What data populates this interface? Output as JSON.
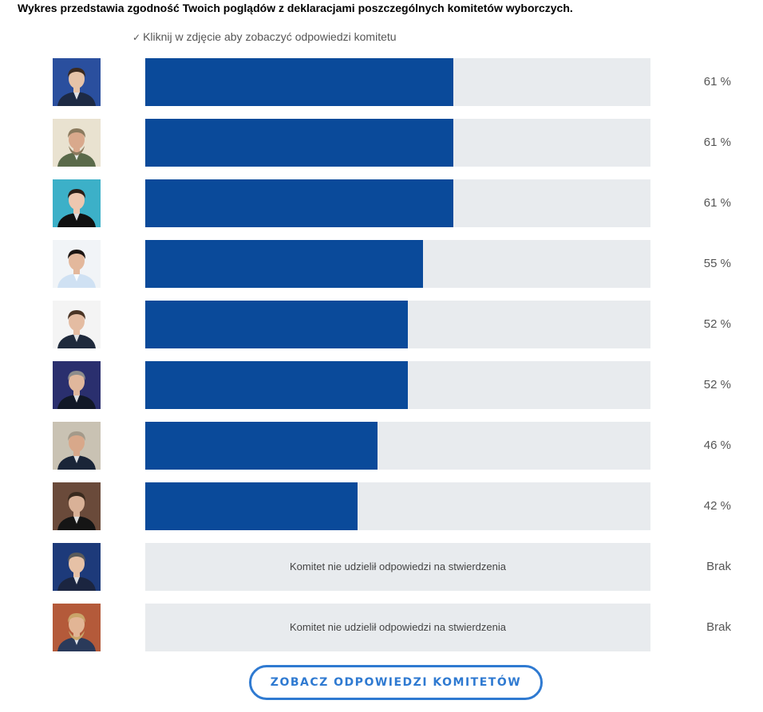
{
  "title": "Wykres przedstawia zgodność Twoich poglądów z deklaracjami poszczególnych komitetów wyborczych.",
  "hint": "Kliknij w zdjęcie aby zobaczyć odpowiedzi komitetu",
  "cta_label": "ZOBACZ ODPOWIEDZI KOMITETÓW",
  "colors": {
    "bar_fill": "#0a4a9a",
    "track": "#e8ebee",
    "cta": "#2f7ad1"
  },
  "chart_data": {
    "type": "bar",
    "orientation": "horizontal",
    "xlim": [
      0,
      100
    ],
    "unit": "%",
    "no_answer_text": "Komitet nie udzielił odpowiedzi na stwierdzenia",
    "no_answer_label": "Brak",
    "categories": [
      "komitet-1",
      "komitet-2",
      "komitet-3",
      "komitet-4",
      "komitet-5",
      "komitet-6",
      "komitet-7",
      "komitet-8",
      "komitet-9",
      "komitet-10"
    ],
    "values": [
      61,
      61,
      61,
      55,
      52,
      52,
      46,
      42,
      null,
      null
    ],
    "labels": [
      "61 %",
      "61 %",
      "61 %",
      "55 %",
      "52 %",
      "52 %",
      "46 %",
      "42 %",
      "Brak",
      "Brak"
    ]
  },
  "photos": [
    {
      "bg": "#2a4f9e",
      "hair": "#3b2a1f",
      "skin": "#e6c3a8",
      "shirt": "#1d2a44",
      "beard": false
    },
    {
      "bg": "#e9e2d0",
      "hair": "#8a7a5e",
      "skin": "#d9a98c",
      "shirt": "#5a6a4a",
      "beard": true
    },
    {
      "bg": "#3cb0c8",
      "hair": "#2a1d16",
      "skin": "#edc7b0",
      "shirt": "#111111",
      "beard": false
    },
    {
      "bg": "#f1f4f7",
      "hair": "#1b1512",
      "skin": "#e3b89c",
      "shirt": "#cfe1f3",
      "beard": false
    },
    {
      "bg": "#f4f4f4",
      "hair": "#4a3526",
      "skin": "#e4bca2",
      "shirt": "#1f2a3c",
      "beard": false
    },
    {
      "bg": "#2a2f6e",
      "hair": "#8c8c8c",
      "skin": "#e0b79c",
      "shirt": "#111827",
      "beard": false
    },
    {
      "bg": "#c9c2b3",
      "hair": "#a49a8a",
      "skin": "#d8a88a",
      "shirt": "#1a2538",
      "beard": false
    },
    {
      "bg": "#6a4a3a",
      "hair": "#3a2a1e",
      "skin": "#d9b197",
      "shirt": "#151515",
      "beard": false
    },
    {
      "bg": "#1d3a7a",
      "hair": "#5a5a5a",
      "skin": "#e6c1a6",
      "shirt": "#1b2540",
      "beard": false
    },
    {
      "bg": "#b45a3a",
      "hair": "#c9a56a",
      "skin": "#e2b595",
      "shirt": "#2a3a5a",
      "beard": true
    }
  ]
}
